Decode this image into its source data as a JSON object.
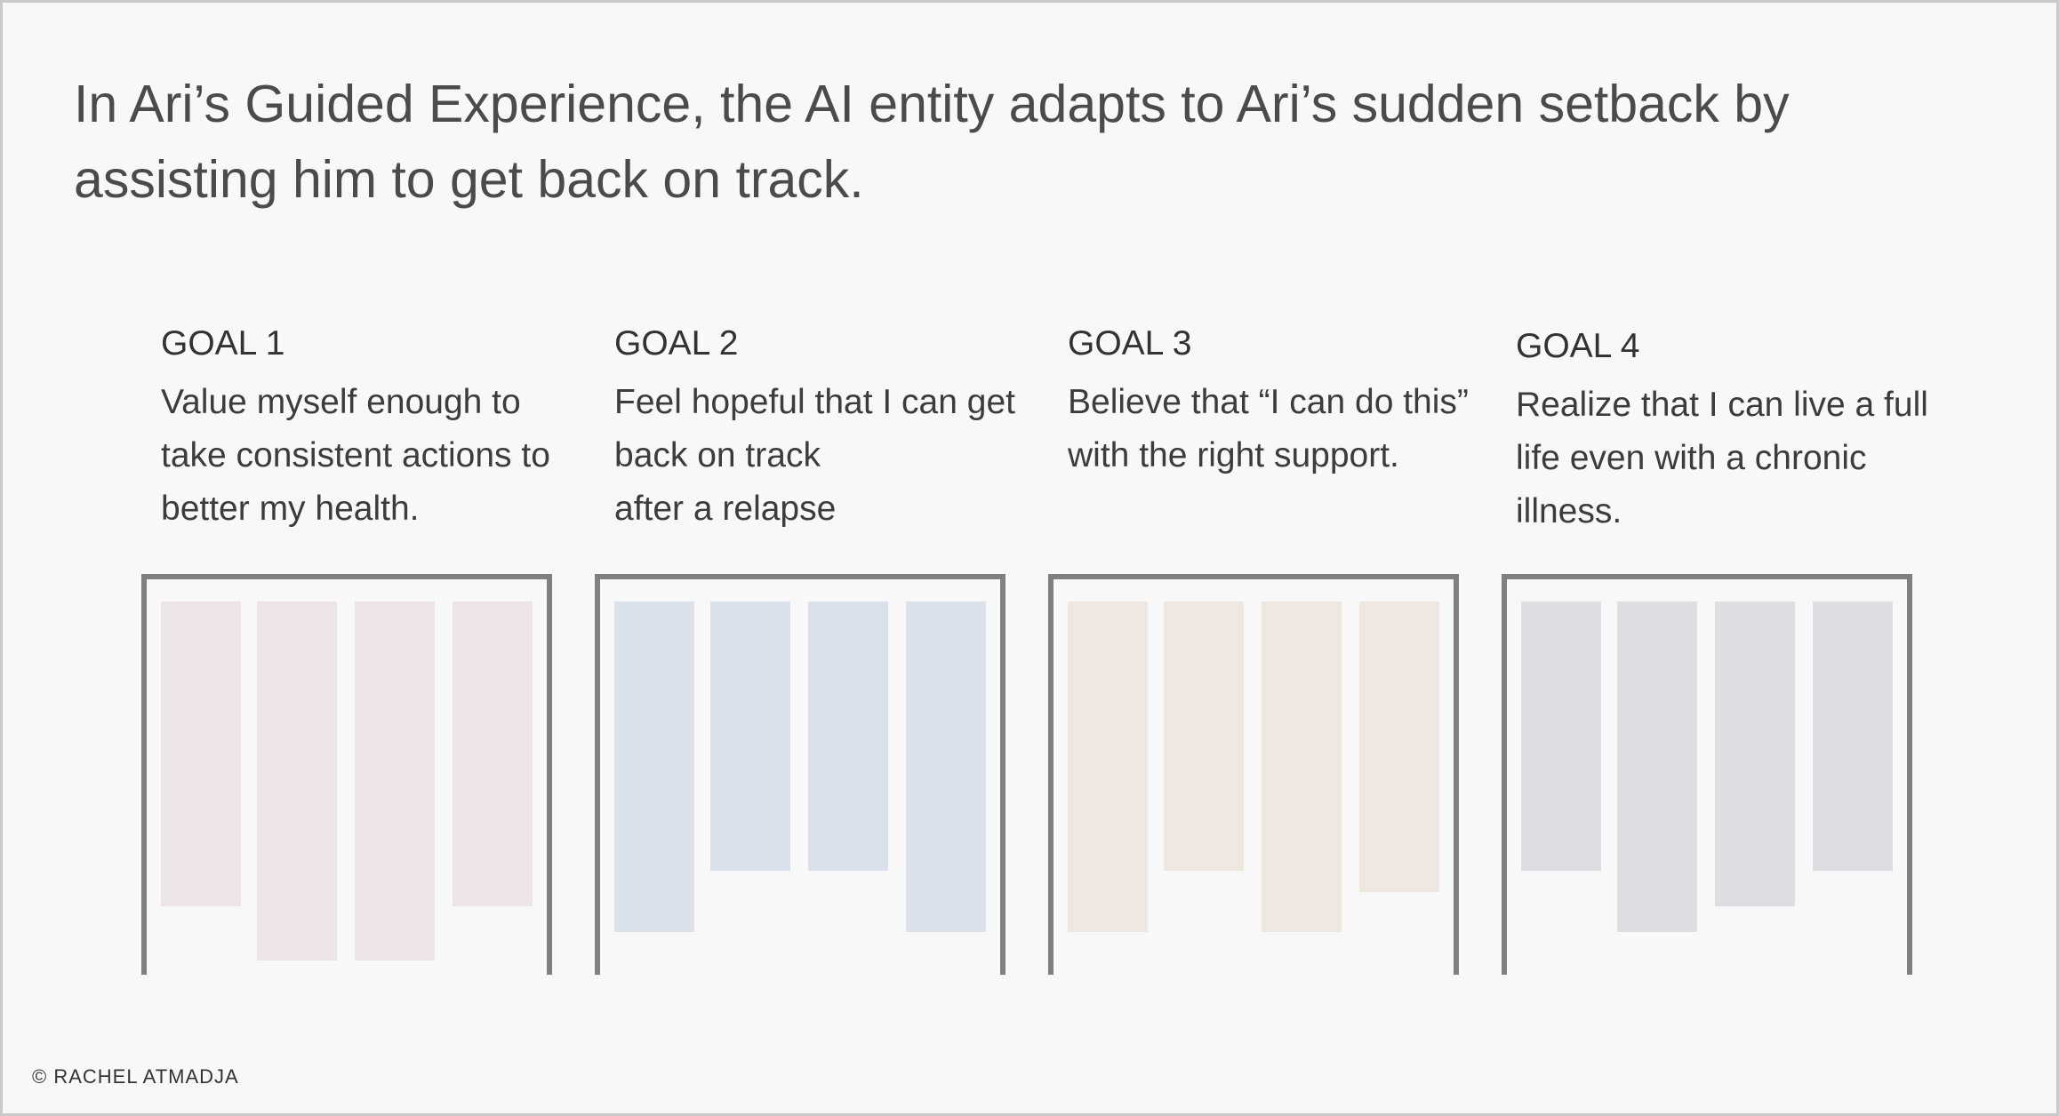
{
  "headline": "In Ari’s Guided Experience, the AI entity adapts to Ari’s sudden setback by assisting him to get back on track.",
  "goals": [
    {
      "label": "GOAL 1",
      "text": "Value myself enough to take consistent actions to better my health.",
      "color": "#ede4e6",
      "bars": [
        {
          "level": 0.85
        },
        {
          "level": 1.0
        },
        {
          "level": 1.0
        },
        {
          "level": 0.85
        }
      ]
    },
    {
      "label": "GOAL 2",
      "text": "Feel hopeful that I can get back on track\nafter a relapse",
      "color": "#dbe1ea",
      "bars": [
        {
          "level": 0.92
        },
        {
          "level": 0.75
        },
        {
          "level": 0.75
        },
        {
          "level": 0.92
        }
      ]
    },
    {
      "label": "GOAL 3",
      "text": "Believe that “I can do this” with the right support.",
      "color": "#efe8e0",
      "bars": [
        {
          "level": 0.92
        },
        {
          "level": 0.75
        },
        {
          "level": 0.92
        },
        {
          "level": 0.81
        }
      ]
    },
    {
      "label": "GOAL 4",
      "text": "Realize that I can live a full life even with a chronic illness.",
      "color": "#dfdde2",
      "bars": [
        {
          "level": 0.75
        },
        {
          "level": 0.92
        },
        {
          "level": 0.85
        },
        {
          "level": 0.75
        }
      ]
    }
  ],
  "footer": "© RACHEL ATMADJA"
}
